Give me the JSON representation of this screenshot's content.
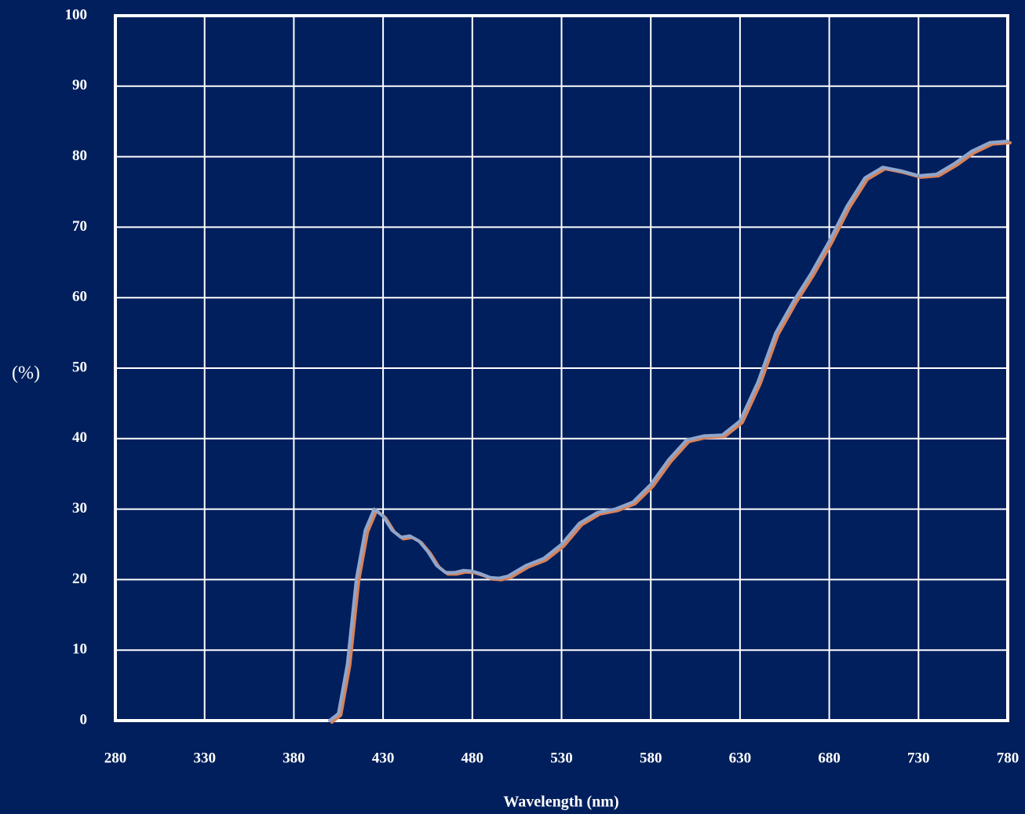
{
  "chart_data": {
    "type": "line",
    "y_label": "(%)",
    "x_label": "Wavelength (nm)",
    "xlim": [
      280,
      780
    ],
    "xticks": [
      280,
      330,
      380,
      430,
      480,
      530,
      580,
      630,
      680,
      730,
      780
    ],
    "ylim": [
      0,
      100
    ],
    "yticks": [
      0,
      10,
      20,
      30,
      40,
      50,
      60,
      70,
      80,
      90,
      100
    ],
    "grid": true,
    "background": "#001f5c",
    "x": [
      400,
      405,
      410,
      415,
      420,
      425,
      430,
      435,
      440,
      445,
      450,
      455,
      460,
      465,
      470,
      475,
      480,
      485,
      490,
      495,
      500,
      510,
      520,
      530,
      540,
      550,
      560,
      570,
      580,
      590,
      600,
      610,
      620,
      630,
      640,
      650,
      660,
      670,
      680,
      690,
      700,
      710,
      720,
      730,
      740,
      750,
      760,
      770,
      780
    ],
    "series": [
      {
        "color": "#8fa6cc",
        "shadow_color": "#d9825a",
        "values": [
          0,
          1,
          8,
          20,
          27,
          30,
          29,
          27,
          26,
          26.2,
          25.5,
          24,
          22,
          21,
          21,
          21.3,
          21.2,
          20.8,
          20.3,
          20.2,
          20.5,
          22,
          23,
          25,
          28,
          29.5,
          30,
          31,
          33.5,
          37,
          39.8,
          40.4,
          40.5,
          42.5,
          48,
          55,
          59.5,
          63.5,
          68,
          73,
          77,
          78.5,
          78,
          77.3,
          77.5,
          79,
          80.8,
          82,
          82.2
        ]
      }
    ]
  }
}
